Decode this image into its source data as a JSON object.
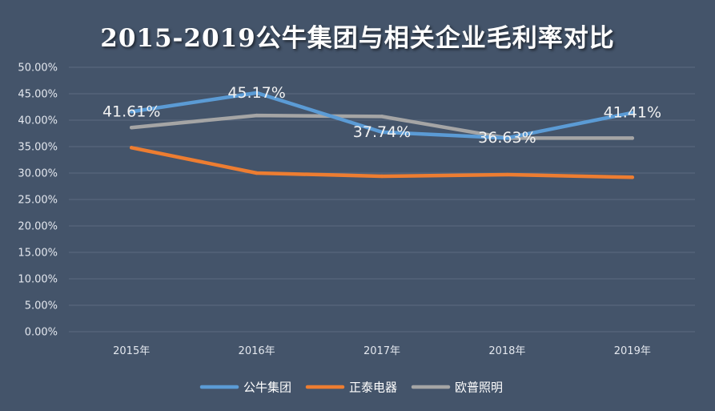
{
  "chart_data": {
    "type": "line",
    "title": "2015-2019公牛集团与相关企业毛利率对比",
    "xlabel": "",
    "ylabel": "",
    "categories": [
      "2015年",
      "2016年",
      "2017年",
      "2018年",
      "2019年"
    ],
    "ylim": [
      0,
      50
    ],
    "ytick_labels": [
      "0.00%",
      "5.00%",
      "10.00%",
      "15.00%",
      "20.00%",
      "25.00%",
      "30.00%",
      "35.00%",
      "40.00%",
      "45.00%",
      "50.00%"
    ],
    "grid": true,
    "legend_position": "bottom",
    "series": [
      {
        "name": "公牛集团",
        "color": "#5b9bd5",
        "values": [
          41.61,
          45.17,
          37.74,
          36.63,
          41.41
        ],
        "data_labels": [
          "41.61%",
          "45.17%",
          "37.74%",
          "36.63%",
          "41.41%"
        ]
      },
      {
        "name": "正泰电器",
        "color": "#ed7d31",
        "values": [
          34.8,
          30.0,
          29.4,
          29.7,
          29.2
        ]
      },
      {
        "name": "欧普照明",
        "color": "#a5a5a5",
        "values": [
          38.6,
          40.9,
          40.7,
          36.6,
          36.6
        ]
      }
    ],
    "colors": {
      "background": "#44546a",
      "gridline": "#5b6a80",
      "text": "#e3e7ee"
    }
  }
}
